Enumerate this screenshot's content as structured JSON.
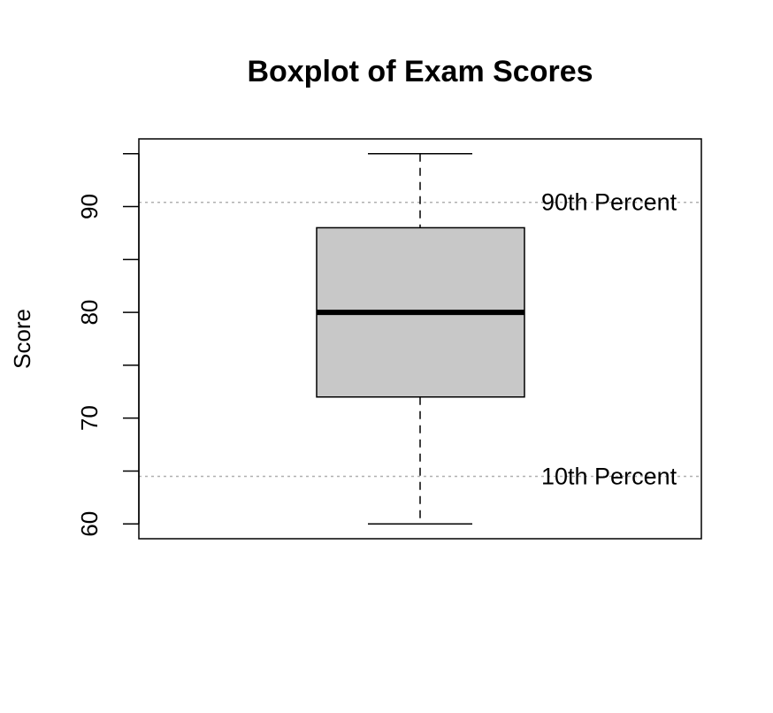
{
  "chart_data": {
    "type": "boxplot",
    "title": "Boxplot of Exam Scores",
    "xlabel": "",
    "ylabel": "Score",
    "ylim": [
      58.6,
      96.4
    ],
    "yticks": [
      60,
      70,
      80,
      90
    ],
    "yticks_minor": [
      65,
      75,
      85,
      95
    ],
    "grid": false,
    "box": {
      "whisker_low": 60,
      "q1": 72,
      "median": 80,
      "q3": 88,
      "whisker_high": 95,
      "fill": "#c8c8c8"
    },
    "reference_lines": [
      {
        "value": 90.4,
        "label": "90th Percent",
        "color": "#b0b0b0",
        "style": "dotted"
      },
      {
        "value": 64.5,
        "label": "10th Percent",
        "color": "#b0b0b0",
        "style": "dotted"
      }
    ]
  }
}
